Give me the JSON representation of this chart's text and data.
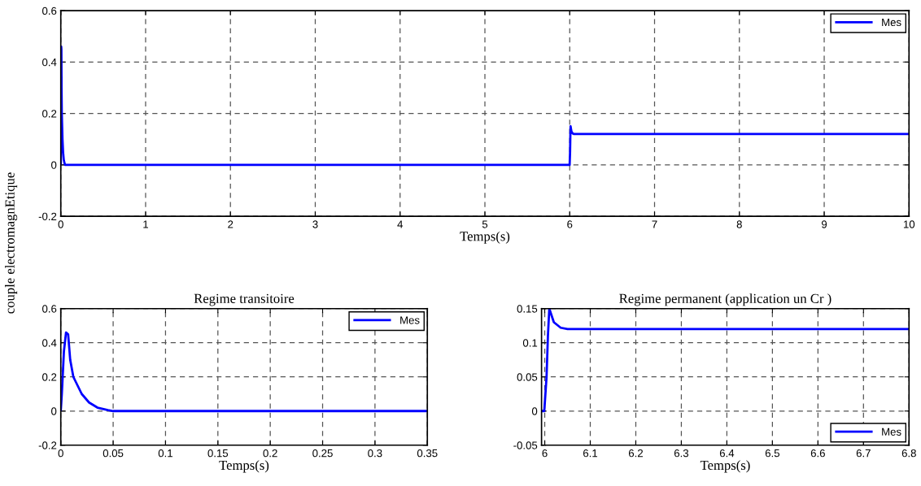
{
  "chart_data": [
    {
      "type": "line",
      "ylabel": "couple electromagnEtique",
      "xlabel": "Temps(s)",
      "x": [
        0,
        0.001,
        0.003,
        0.005,
        0.007,
        0.009,
        0.012,
        0.016,
        0.02,
        0.027,
        0.035,
        0.045,
        0.05,
        5.999,
        6.004,
        6.007,
        6.01,
        6.02,
        6.035,
        6.05,
        10
      ],
      "series": [
        {
          "name": "Mes",
          "color": "#0000ff",
          "values": [
            0,
            0.1,
            0.35,
            0.46,
            0.45,
            0.3,
            0.2,
            0.15,
            0.1,
            0.05,
            0.02,
            0.005,
            0,
            0,
            0.05,
            0.11,
            0.15,
            0.13,
            0.122,
            0.12,
            0.12
          ]
        }
      ],
      "xlim": [
        0,
        10
      ],
      "xticks": [
        0,
        1,
        2,
        3,
        4,
        5,
        6,
        7,
        8,
        9,
        10
      ],
      "ylim": [
        -0.2,
        0.6
      ],
      "yticks": [
        -0.2,
        0,
        0.2,
        0.4,
        0.6
      ],
      "grid": true,
      "legend": "top right"
    },
    {
      "type": "line",
      "title": "Regime transitoire",
      "xlabel": "Temps(s)",
      "x": [
        0,
        0.001,
        0.003,
        0.005,
        0.007,
        0.009,
        0.012,
        0.016,
        0.02,
        0.027,
        0.035,
        0.045,
        0.05,
        0.35
      ],
      "series": [
        {
          "name": "Mes",
          "color": "#0000ff",
          "values": [
            0,
            0.1,
            0.35,
            0.46,
            0.45,
            0.3,
            0.2,
            0.15,
            0.1,
            0.05,
            0.02,
            0.005,
            0,
            0
          ]
        }
      ],
      "xlim": [
        0,
        0.35
      ],
      "xticks": [
        0,
        0.05,
        0.1,
        0.15,
        0.2,
        0.25,
        0.3,
        0.35
      ],
      "ylim": [
        -0.2,
        0.6
      ],
      "yticks": [
        -0.2,
        0,
        0.2,
        0.4,
        0.6
      ],
      "grid": true,
      "legend": "top right"
    },
    {
      "type": "line",
      "title": "Regime permanent (application un Cr )",
      "xlabel": "Temps(s)",
      "x": [
        5.993,
        5.999,
        6.004,
        6.007,
        6.01,
        6.02,
        6.035,
        6.05,
        6.8
      ],
      "series": [
        {
          "name": "Mes",
          "color": "#0000ff",
          "values": [
            0,
            0,
            0.05,
            0.11,
            0.15,
            0.13,
            0.122,
            0.12,
            0.12
          ]
        }
      ],
      "xlim": [
        5.993,
        6.8
      ],
      "xticks": [
        6,
        6.1,
        6.2,
        6.3,
        6.4,
        6.5,
        6.6,
        6.7,
        6.8
      ],
      "ylim": [
        -0.05,
        0.15
      ],
      "yticks": [
        -0.05,
        0,
        0.05,
        0.1,
        0.15
      ],
      "grid": true,
      "legend": "bottom right"
    }
  ]
}
